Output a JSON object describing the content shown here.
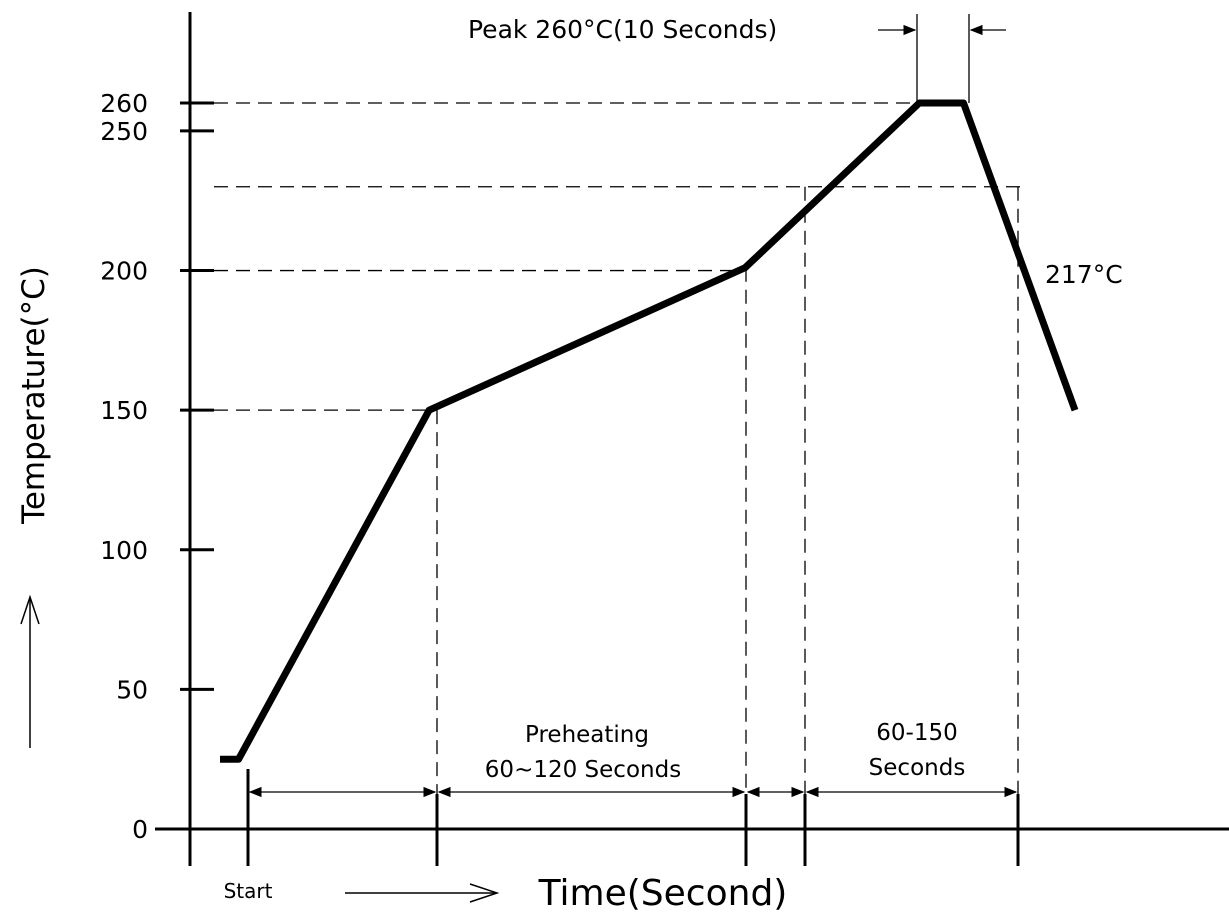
{
  "chart_data": {
    "type": "line",
    "title": "",
    "xlabel": "Time(Second)",
    "ylabel": "Temperature(°C)",
    "ylim": [
      0,
      260
    ],
    "yticks": [
      0,
      50,
      100,
      150,
      200,
      250,
      260
    ],
    "series": [
      {
        "points": [
          {
            "t": 0,
            "y": 25
          },
          {
            "t": 8,
            "y": 25
          },
          {
            "t": 90,
            "y": 150
          },
          {
            "t": 226,
            "y": 201
          },
          {
            "t": 301,
            "y": 260
          },
          {
            "t": 320,
            "y": 260
          },
          {
            "t": 368,
            "y": 150
          }
        ]
      }
    ],
    "reference_lines": {
      "horizontal": [
        150,
        200,
        230,
        260
      ],
      "vertical": [
        90,
        226,
        252,
        345
      ]
    },
    "annotations": {
      "peak": "Peak 260°C(10 Seconds)",
      "liquidus": "217°C",
      "preheat_line1": "Preheating",
      "preheat_line2": "60~120 Seconds",
      "reflow_line1": "60-150",
      "reflow_line2": "Seconds",
      "start": "Start"
    },
    "grid": false
  }
}
